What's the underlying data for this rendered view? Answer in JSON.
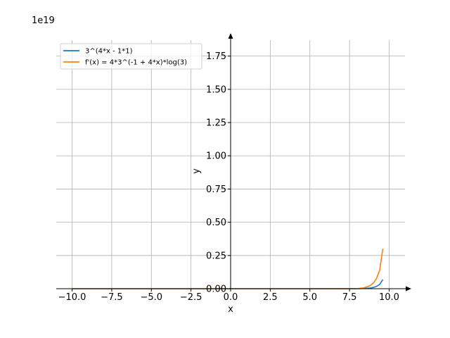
{
  "chart_data": {
    "type": "line",
    "offset_label": "1e19",
    "xlabel": "x",
    "ylabel": "y",
    "xlim": [
      -11,
      11
    ],
    "ylim": [
      0,
      1.87
    ],
    "y_scale_factor": 1e+19,
    "grid": true,
    "legend_position": "top-left",
    "x_ticks": [
      "−10.0",
      "−7.5",
      "−5.0",
      "−2.5",
      "0.0",
      "2.5",
      "5.0",
      "7.5",
      "10.0"
    ],
    "x_tick_values": [
      -10,
      -7.5,
      -5,
      -2.5,
      0,
      2.5,
      5,
      7.5,
      10
    ],
    "y_ticks": [
      "0.00",
      "0.25",
      "0.50",
      "0.75",
      "1.00",
      "1.25",
      "1.50",
      "1.75"
    ],
    "y_tick_values": [
      0,
      0.25,
      0.5,
      0.75,
      1.0,
      1.25,
      1.5,
      1.75
    ],
    "series": [
      {
        "name": "3^(4*x - 1*1)",
        "color": "#1f77b4",
        "x": [
          -10,
          -7.5,
          -5,
          -2.5,
          0,
          2.5,
          5,
          7.5,
          8.0,
          8.4,
          8.8,
          9.0,
          9.2,
          9.4,
          9.6
        ],
        "y": [
          0,
          0,
          0,
          0,
          0,
          0,
          0,
          0.0001,
          0.0003,
          0.0015,
          0.0052,
          0.0096,
          0.0174,
          0.0314,
          0.0686
        ]
      },
      {
        "name": "f'(x) = 4*3^(-1 + 4*x)*log(3)",
        "color": "#ff7f0e",
        "x": [
          -10,
          -7.5,
          -5,
          -2.5,
          0,
          2.5,
          5,
          7.5,
          8.0,
          8.4,
          8.8,
          9.0,
          9.2,
          9.4,
          9.6
        ],
        "y": [
          0,
          0,
          0,
          0,
          0,
          0,
          0,
          0.0002,
          0.0013,
          0.0066,
          0.0229,
          0.0422,
          0.0765,
          0.138,
          0.301
        ]
      }
    ]
  }
}
